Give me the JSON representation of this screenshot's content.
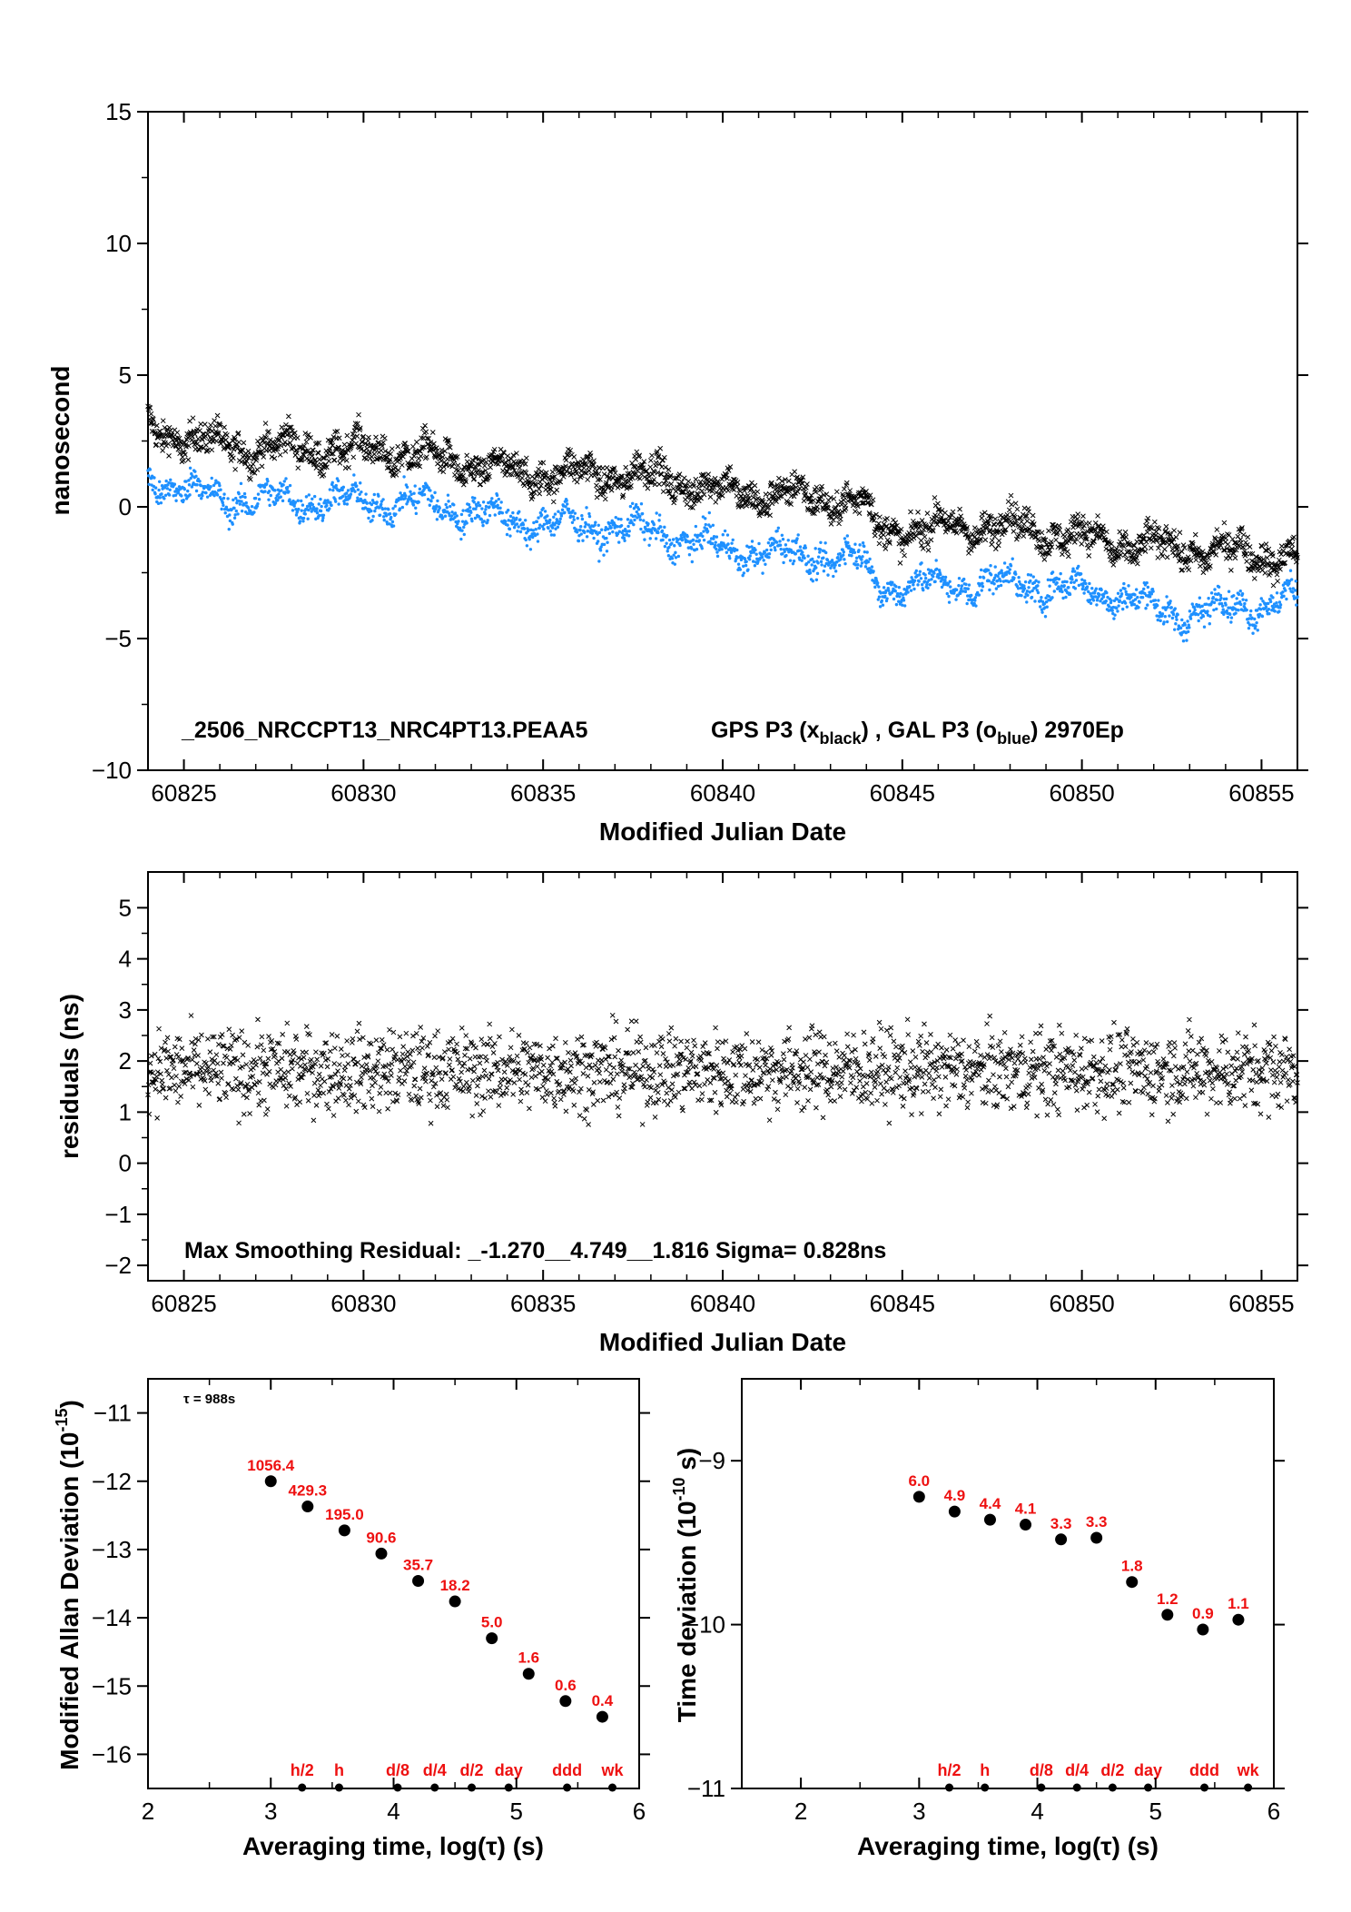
{
  "chart_data": [
    {
      "type": "scatter",
      "panel": "top",
      "xlabel": "Modified Julian Date",
      "ylabel": "nanosecond",
      "xlim": [
        60824,
        60856
      ],
      "ylim": [
        -10,
        15
      ],
      "xticks": [
        60825,
        60830,
        60835,
        60840,
        60845,
        60850,
        60855
      ],
      "yticks": [
        -10,
        -5,
        0,
        5,
        10,
        15
      ],
      "title_left": "_2506_NRCCPT13_NRC4PT13.PEAA5",
      "title_right_1": "GPS P3 (x",
      "title_right_sub1": "black",
      "title_right_2": ") ,  GAL P3 (o",
      "title_right_sub2": "blue",
      "title_right_3": ")  2970Ep",
      "series": [
        {
          "marker": "x",
          "color": "#000000",
          "trend_points": [
            [
              60824,
              3.0
            ],
            [
              60826,
              2.3
            ],
            [
              60831,
              2.1
            ],
            [
              60834,
              1.3
            ],
            [
              60838,
              1.2
            ],
            [
              60840,
              0.6
            ],
            [
              60843.9,
              0.2
            ],
            [
              60844.3,
              -0.9
            ],
            [
              60848,
              -0.7
            ],
            [
              60851,
              -1.4
            ],
            [
              60856,
              -1.9
            ]
          ],
          "spread": 0.6
        },
        {
          "marker": "o",
          "color": "#1e90ff",
          "trend_points": [
            [
              60824,
              1.1
            ],
            [
              60826,
              0.3
            ],
            [
              60830,
              0.2
            ],
            [
              60832,
              0.1
            ],
            [
              60834,
              -0.5
            ],
            [
              60838,
              -0.9
            ],
            [
              60840,
              -1.6
            ],
            [
              60843.9,
              -2.0
            ],
            [
              60844.3,
              -3.0
            ],
            [
              60848,
              -2.9
            ],
            [
              60851,
              -3.3
            ],
            [
              60852.5,
              -4.1
            ],
            [
              60856,
              -3.5
            ]
          ],
          "spread": 0.5
        }
      ]
    },
    {
      "type": "scatter",
      "panel": "middle",
      "xlabel": "Modified Julian Date",
      "ylabel": "residuals (ns)",
      "xlim": [
        60824,
        60856
      ],
      "ylim": [
        -2.3,
        5.7
      ],
      "xticks": [
        60825,
        60830,
        60835,
        60840,
        60845,
        60850,
        60855
      ],
      "yticks": [
        -2,
        -1,
        0,
        1,
        2,
        3,
        4,
        5
      ],
      "annotation": "Max Smoothing Residual: _-1.270__4.749__1.816  Sigma= 0.828ns",
      "residual_stats": {
        "min": -1.27,
        "max": 4.749,
        "mean": 1.816,
        "sigma": 0.828
      },
      "series": [
        {
          "marker": "x",
          "color": "#000000"
        }
      ]
    },
    {
      "type": "scatter",
      "panel": "bottom-left",
      "xlabel": "Averaging time, log(τ) (s)",
      "ylabel": "Modified Allan Deviation (10",
      "ylabel_sup": "-15",
      "ylabel_end": ")",
      "tau_note": "τ = 988s",
      "xlim": [
        2,
        6
      ],
      "ylim": [
        -16.5,
        -10.5
      ],
      "xticks": [
        2,
        3,
        4,
        5,
        6
      ],
      "yticks": [
        -16,
        -15,
        -14,
        -13,
        -12,
        -11
      ],
      "points": [
        {
          "x": 3.0,
          "y": -12.0,
          "label": "1056.4"
        },
        {
          "x": 3.3,
          "y": -12.37,
          "label": "429.3"
        },
        {
          "x": 3.6,
          "y": -12.72,
          "label": "195.0"
        },
        {
          "x": 3.9,
          "y": -13.06,
          "label": "90.6"
        },
        {
          "x": 4.2,
          "y": -13.46,
          "label": "35.7"
        },
        {
          "x": 4.5,
          "y": -13.76,
          "label": "18.2"
        },
        {
          "x": 4.8,
          "y": -14.3,
          "label": "5.0"
        },
        {
          "x": 5.1,
          "y": -14.82,
          "label": "1.6"
        },
        {
          "x": 5.4,
          "y": -15.22,
          "label": "0.6"
        },
        {
          "x": 5.7,
          "y": -15.45,
          "label": "0.4"
        }
      ],
      "markers": [
        {
          "x": 3.255,
          "label": "h/2"
        },
        {
          "x": 3.556,
          "label": "h"
        },
        {
          "x": 4.033,
          "label": "d/8"
        },
        {
          "x": 4.335,
          "label": "d/4"
        },
        {
          "x": 4.636,
          "label": "d/2"
        },
        {
          "x": 4.937,
          "label": "day"
        },
        {
          "x": 5.413,
          "label": "ddd"
        },
        {
          "x": 5.782,
          "label": "wk"
        }
      ]
    },
    {
      "type": "scatter",
      "panel": "bottom-right",
      "xlabel": "Averaging time, log(τ) (s)",
      "ylabel": "Time deviation (10",
      "ylabel_sup": "-10",
      "ylabel_end": " s)",
      "xlim": [
        1.5,
        6
      ],
      "ylim": [
        -11,
        -8.5
      ],
      "xticks": [
        2,
        3,
        4,
        5,
        6
      ],
      "yticks": [
        -11,
        -10,
        -9
      ],
      "points": [
        {
          "x": 3.0,
          "y": -9.22,
          "label": "6.0"
        },
        {
          "x": 3.3,
          "y": -9.31,
          "label": "4.9"
        },
        {
          "x": 3.6,
          "y": -9.36,
          "label": "4.4"
        },
        {
          "x": 3.9,
          "y": -9.39,
          "label": "4.1"
        },
        {
          "x": 4.2,
          "y": -9.48,
          "label": "3.3"
        },
        {
          "x": 4.5,
          "y": -9.47,
          "label": "3.3"
        },
        {
          "x": 4.8,
          "y": -9.74,
          "label": "1.8"
        },
        {
          "x": 5.1,
          "y": -9.94,
          "label": "1.2"
        },
        {
          "x": 5.4,
          "y": -10.03,
          "label": "0.9"
        },
        {
          "x": 5.7,
          "y": -9.97,
          "label": "1.1"
        }
      ],
      "markers": [
        {
          "x": 3.255,
          "label": "h/2"
        },
        {
          "x": 3.556,
          "label": "h"
        },
        {
          "x": 4.033,
          "label": "d/8"
        },
        {
          "x": 4.335,
          "label": "d/4"
        },
        {
          "x": 4.636,
          "label": "d/2"
        },
        {
          "x": 4.937,
          "label": "day"
        },
        {
          "x": 5.413,
          "label": "ddd"
        },
        {
          "x": 5.782,
          "label": "wk"
        }
      ]
    }
  ]
}
